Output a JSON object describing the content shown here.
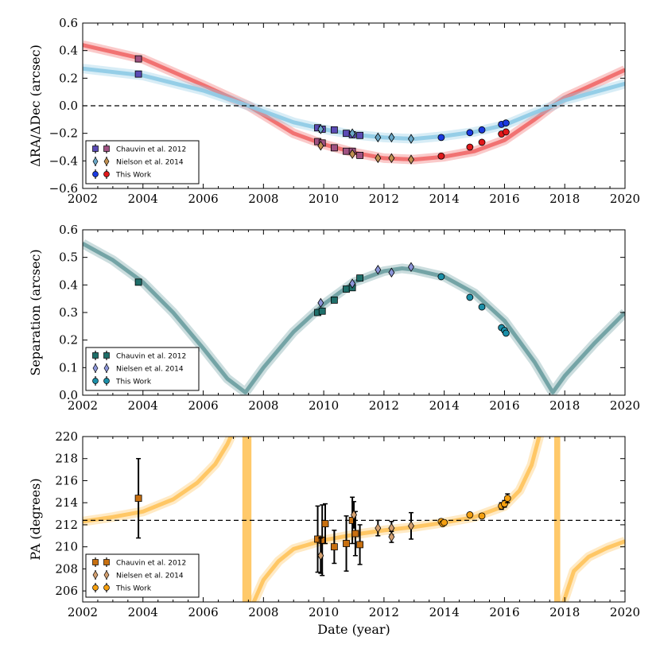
{
  "chart_data": [
    {
      "type": "line",
      "panel": "top",
      "ylabel": "ΔRA/ΔDec (arcsec)",
      "xlim": [
        2002,
        2020
      ],
      "ylim": [
        -0.6,
        0.6
      ],
      "xticks": [
        "2002",
        "2004",
        "2006",
        "2008",
        "2010",
        "2012",
        "2014",
        "2016",
        "2018",
        "2020"
      ],
      "yticks": [
        "0.6",
        "0.4",
        "0.2",
        "0.0",
        "−0.2",
        "−0.4",
        "−0.6"
      ],
      "yticks_values": [
        0.6,
        0.4,
        0.2,
        0.0,
        -0.2,
        -0.4,
        -0.6
      ],
      "reference_line": 0.0,
      "models": [
        {
          "name": "ΔRA orbit fits",
          "color": "#f06868",
          "x": [
            2002,
            2004,
            2006,
            2007.5,
            2009,
            2010,
            2011,
            2012,
            2013,
            2014,
            2015,
            2016,
            2017,
            2017.6,
            2018,
            2019,
            2020
          ],
          "y": [
            0.44,
            0.34,
            0.15,
            0.0,
            -0.2,
            -0.28,
            -0.34,
            -0.38,
            -0.39,
            -0.37,
            -0.33,
            -0.25,
            -0.1,
            0.0,
            0.06,
            0.16,
            0.26
          ]
        },
        {
          "name": "ΔDec orbit fits",
          "color": "#8ecae6",
          "x": [
            2002,
            2004,
            2006,
            2007.5,
            2009,
            2010,
            2011,
            2012,
            2013,
            2014,
            2015,
            2016,
            2017,
            2017.6,
            2018,
            2019,
            2020
          ],
          "y": [
            0.27,
            0.22,
            0.11,
            0.0,
            -0.12,
            -0.17,
            -0.21,
            -0.23,
            -0.24,
            -0.22,
            -0.19,
            -0.14,
            -0.05,
            0.0,
            0.04,
            0.1,
            0.16
          ]
        }
      ],
      "series": [
        {
          "name": "Chauvin et al. 2012",
          "points": [
            [
              2003.85,
              0.34,
              "#a05282"
            ],
            [
              2003.85,
              0.23,
              "#5b4bb5"
            ],
            [
              2009.8,
              -0.16,
              "#5b4bb5"
            ],
            [
              2009.8,
              -0.26,
              "#a05282"
            ],
            [
              2009.95,
              -0.17,
              "#5b4bb5"
            ],
            [
              2009.95,
              -0.27,
              "#a05282"
            ],
            [
              2010.35,
              -0.175,
              "#5b4bb5"
            ],
            [
              2010.35,
              -0.305,
              "#a05282"
            ],
            [
              2010.75,
              -0.2,
              "#5b4bb5"
            ],
            [
              2010.75,
              -0.33,
              "#a05282"
            ],
            [
              2010.95,
              -0.21,
              "#5b4bb5"
            ],
            [
              2010.95,
              -0.33,
              "#a05282"
            ],
            [
              2011.2,
              -0.215,
              "#5b4bb5"
            ],
            [
              2011.2,
              -0.36,
              "#a05282"
            ]
          ]
        },
        {
          "name": "Nielson et al. 2014",
          "points": [
            [
              2009.9,
              -0.17,
              "#6aa8c8"
            ],
            [
              2009.9,
              -0.29,
              "#c09050"
            ],
            [
              2010.95,
              -0.2,
              "#6aa8c8"
            ],
            [
              2010.95,
              -0.35,
              "#c09050"
            ],
            [
              2011.8,
              -0.23,
              "#6aa8c8"
            ],
            [
              2011.8,
              -0.38,
              "#c09050"
            ],
            [
              2012.25,
              -0.23,
              "#6aa8c8"
            ],
            [
              2012.25,
              -0.38,
              "#c09050"
            ],
            [
              2012.9,
              -0.24,
              "#6aa8c8"
            ],
            [
              2012.9,
              -0.39,
              "#c09050"
            ]
          ]
        },
        {
          "name": "This Work",
          "points": [
            [
              2013.9,
              -0.23,
              "#1a3ae0"
            ],
            [
              2013.9,
              -0.365,
              "#e0181a"
            ],
            [
              2014.85,
              -0.195,
              "#1a3ae0"
            ],
            [
              2014.85,
              -0.3,
              "#e0181a"
            ],
            [
              2015.25,
              -0.175,
              "#1a3ae0"
            ],
            [
              2015.25,
              -0.265,
              "#e0181a"
            ],
            [
              2015.9,
              -0.135,
              "#1a3ae0"
            ],
            [
              2015.9,
              -0.205,
              "#e0181a"
            ],
            [
              2016.05,
              -0.125,
              "#1a3ae0"
            ],
            [
              2016.05,
              -0.19,
              "#e0181a"
            ]
          ]
        }
      ],
      "legend": [
        {
          "label": "Chauvin et al. 2012",
          "marker": "square",
          "color": "#5b4bb5",
          "color2": "#a05282"
        },
        {
          "label": "Nielson et al. 2014",
          "marker": "diamond",
          "color": "#6aa8c8",
          "color2": "#c09050"
        },
        {
          "label": "This Work",
          "marker": "circle",
          "color": "#1a3ae0",
          "color2": "#e0181a"
        }
      ],
      "legend_position": "bottom-left"
    },
    {
      "type": "line",
      "panel": "middle",
      "ylabel": "Separation (arcsec)",
      "xlim": [
        2002,
        2020
      ],
      "ylim": [
        0.0,
        0.6
      ],
      "xticks": [
        "2002",
        "2004",
        "2006",
        "2008",
        "2010",
        "2012",
        "2014",
        "2016",
        "2018",
        "2020"
      ],
      "yticks": [
        "0.6",
        "0.5",
        "0.4",
        "0.3",
        "0.2",
        "0.1",
        "0.0"
      ],
      "yticks_values": [
        0.6,
        0.5,
        0.4,
        0.3,
        0.2,
        0.1,
        0.0
      ],
      "models": [
        {
          "name": "Separation orbit fits",
          "color": "#6a9da0",
          "x": [
            2002,
            2003,
            2004,
            2005,
            2006,
            2006.8,
            2007.4,
            2008,
            2009,
            2010,
            2011,
            2012,
            2012.6,
            2013,
            2014,
            2015,
            2016,
            2017,
            2017.6,
            2018,
            2019,
            2020
          ],
          "y": [
            0.55,
            0.49,
            0.41,
            0.3,
            0.17,
            0.06,
            0.01,
            0.1,
            0.23,
            0.33,
            0.41,
            0.45,
            0.46,
            0.455,
            0.43,
            0.37,
            0.27,
            0.12,
            0.01,
            0.07,
            0.19,
            0.3
          ]
        }
      ],
      "series": [
        {
          "name": "Chauvin et al. 2012",
          "points": [
            [
              2003.85,
              0.41,
              "#1f6f6a"
            ],
            [
              2009.8,
              0.3,
              "#1f6f6a"
            ],
            [
              2009.95,
              0.305,
              "#1f6f6a"
            ],
            [
              2010.35,
              0.345,
              "#1f6f6a"
            ],
            [
              2010.75,
              0.385,
              "#1f6f6a"
            ],
            [
              2010.95,
              0.39,
              "#1f6f6a"
            ],
            [
              2011.2,
              0.425,
              "#1f6f6a"
            ]
          ]
        },
        {
          "name": "Nielsen et al. 2014",
          "points": [
            [
              2009.9,
              0.335,
              "#8b95d8"
            ],
            [
              2010.95,
              0.405,
              "#8b95d8"
            ],
            [
              2011.8,
              0.455,
              "#8b95d8"
            ],
            [
              2012.25,
              0.445,
              "#8b95d8"
            ],
            [
              2012.9,
              0.465,
              "#8b95d8"
            ]
          ]
        },
        {
          "name": "This Work",
          "points": [
            [
              2013.9,
              0.43,
              "#1b8fa8"
            ],
            [
              2014.85,
              0.355,
              "#1b8fa8"
            ],
            [
              2015.25,
              0.32,
              "#1b8fa8"
            ],
            [
              2015.9,
              0.245,
              "#1b8fa8"
            ],
            [
              2016.0,
              0.235,
              "#1b8fa8"
            ],
            [
              2016.05,
              0.225,
              "#1b8fa8"
            ]
          ]
        }
      ],
      "legend": [
        {
          "label": "Chauvin et al. 2012",
          "marker": "square",
          "color": "#1f6f6a"
        },
        {
          "label": "Nielsen et al. 2014",
          "marker": "diamond",
          "color": "#8b95d8"
        },
        {
          "label": "This Work",
          "marker": "circle",
          "color": "#1b8fa8"
        }
      ],
      "legend_position": "bottom-left"
    },
    {
      "type": "line",
      "panel": "bottom",
      "ylabel": "PA (degrees)",
      "xlabel": "Date (year)",
      "xlim": [
        2002,
        2020
      ],
      "ylim": [
        205,
        220
      ],
      "xticks": [
        "2002",
        "2004",
        "2006",
        "2008",
        "2010",
        "2012",
        "2014",
        "2016",
        "2018",
        "2020"
      ],
      "yticks": [
        "220",
        "218",
        "216",
        "214",
        "212",
        "210",
        "208",
        "206"
      ],
      "yticks_values": [
        220,
        218,
        216,
        214,
        212,
        210,
        208,
        206
      ],
      "reference_line": 212.4,
      "models": [
        {
          "name": "PA orbit fits (before 2007.4)",
          "color": "#ffc35a",
          "x": [
            2002,
            2003,
            2004,
            2005,
            2005.8,
            2006.4,
            2006.8,
            2007.0
          ],
          "y": [
            212.3,
            212.7,
            213.2,
            214.3,
            215.8,
            217.5,
            219.3,
            220.5
          ]
        },
        {
          "name": "PA orbit fits (2007.4–2017.7)",
          "color": "#ffc35a",
          "x": [
            2007.6,
            2008.0,
            2008.5,
            2009,
            2010,
            2011,
            2012,
            2013,
            2014,
            2015,
            2016,
            2016.5,
            2016.9,
            2017.2
          ],
          "y": [
            204.5,
            207.0,
            208.7,
            209.8,
            210.6,
            211.1,
            211.5,
            211.8,
            212.2,
            212.7,
            213.7,
            215.1,
            217.4,
            220.5
          ]
        },
        {
          "name": "PA orbit fits (after 2017.7)",
          "color": "#ffc35a",
          "x": [
            2017.9,
            2018.3,
            2018.8,
            2019.4,
            2020
          ],
          "y": [
            204.5,
            207.8,
            209.1,
            209.9,
            210.5
          ]
        }
      ],
      "bands": [
        [
          2007.3,
          2007.6
        ],
        [
          2017.65,
          2017.85
        ]
      ],
      "series": [
        {
          "name": "Chauvin et al. 2012",
          "points": [
            [
              2003.85,
              214.4,
              3.6,
              "#c87010"
            ],
            [
              2009.8,
              210.7,
              3.0,
              "#c87010"
            ],
            [
              2009.95,
              210.6,
              3.2,
              "#c87010"
            ],
            [
              2010.05,
              212.1,
              1.8,
              "#c87010"
            ],
            [
              2010.35,
              210.0,
              1.5,
              "#c87010"
            ],
            [
              2010.75,
              210.3,
              2.5,
              "#c87010"
            ],
            [
              2010.95,
              212.4,
              2.1,
              "#c87010"
            ],
            [
              2011.05,
              211.2,
              2.0,
              "#c87010"
            ],
            [
              2011.2,
              210.2,
              1.8,
              "#c87010"
            ]
          ]
        },
        {
          "name": "Nielsen et al. 2014",
          "points": [
            [
              2009.9,
              209.2,
              1.6,
              "#d4a070"
            ],
            [
              2011.0,
              212.9,
              1.2,
              "#d4a070"
            ],
            [
              2011.8,
              211.7,
              0.7,
              "#d4a070"
            ],
            [
              2012.25,
              211.7,
              0.6,
              "#d4a070"
            ],
            [
              2012.25,
              210.9,
              0.5,
              "#d4a070"
            ],
            [
              2012.9,
              211.9,
              1.2,
              "#d4a070"
            ]
          ]
        },
        {
          "name": "This Work",
          "points": [
            [
              2013.9,
              212.3,
              0.2,
              "#f5a010"
            ],
            [
              2013.95,
              212.1,
              0.2,
              "#f5a010"
            ],
            [
              2014.0,
              212.2,
              0.2,
              "#f5a010"
            ],
            [
              2014.85,
              212.9,
              0.2,
              "#f5a010"
            ],
            [
              2015.25,
              212.8,
              0.2,
              "#f5a010"
            ],
            [
              2015.9,
              213.7,
              0.3,
              "#f5a010"
            ],
            [
              2016.0,
              213.9,
              0.3,
              "#f5a010"
            ],
            [
              2016.1,
              214.4,
              0.4,
              "#f5a010"
            ]
          ]
        }
      ],
      "legend": [
        {
          "label": "Chauvin et al. 2012",
          "marker": "square",
          "color": "#c87010"
        },
        {
          "label": "Nielsen et al. 2014",
          "marker": "diamond",
          "color": "#d4a070"
        },
        {
          "label": "This Work",
          "marker": "circle",
          "color": "#f5a010"
        }
      ],
      "legend_position": "bottom-left"
    }
  ]
}
